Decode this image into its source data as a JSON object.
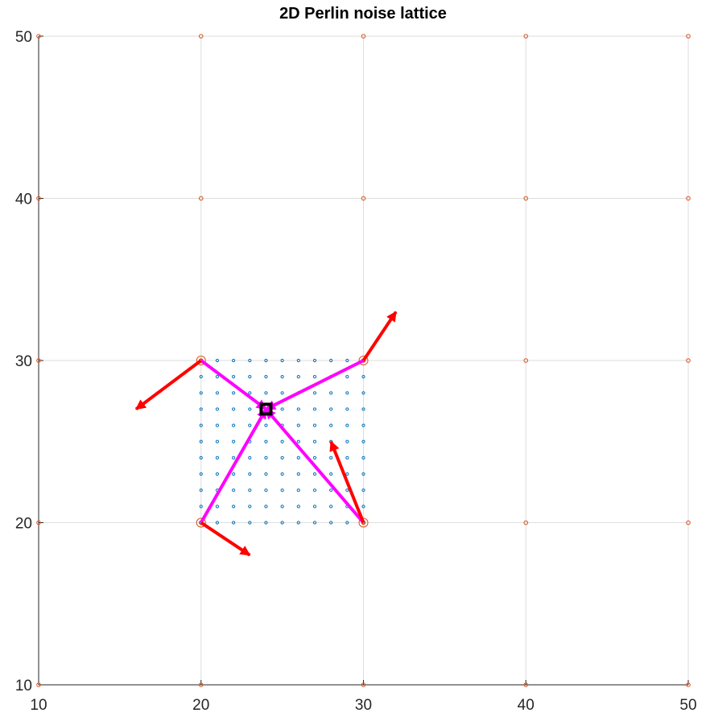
{
  "chart_data": {
    "type": "scatter",
    "title": "2D Perlin noise lattice",
    "xlabel": "",
    "ylabel": "",
    "xlim": [
      10,
      50
    ],
    "ylim": [
      10,
      50
    ],
    "x_ticks": [
      10,
      20,
      30,
      40,
      50
    ],
    "y_ticks": [
      10,
      20,
      30,
      40,
      50
    ],
    "grid": true,
    "lattice_points": {
      "x": [
        10,
        20,
        30,
        40,
        50
      ],
      "y": [
        10,
        20,
        30,
        40,
        50
      ],
      "color": "#D95319"
    },
    "sample_points": {
      "x_range": [
        20,
        30
      ],
      "y_range": [
        20,
        30
      ],
      "step": 1,
      "color": "#0072BD"
    },
    "cell_corners": [
      {
        "x": 20,
        "y": 20
      },
      {
        "x": 30,
        "y": 20
      },
      {
        "x": 20,
        "y": 30
      },
      {
        "x": 30,
        "y": 30
      }
    ],
    "query_point": {
      "x": 24,
      "y": 27,
      "color": "#000000"
    },
    "gradient_vectors": {
      "color": "#FF0000",
      "vectors": [
        {
          "x0": 20,
          "y0": 30,
          "x1": 16,
          "y1": 27
        },
        {
          "x0": 30,
          "y0": 30,
          "x1": 32,
          "y1": 33
        },
        {
          "x0": 20,
          "y0": 20,
          "x1": 23,
          "y1": 18
        },
        {
          "x0": 30,
          "y0": 20,
          "x1": 28,
          "y1": 25
        }
      ]
    },
    "distance_vectors": {
      "color": "#FF00FF",
      "vectors": [
        {
          "x0": 20,
          "y0": 30,
          "x1": 24,
          "y1": 27
        },
        {
          "x0": 30,
          "y0": 30,
          "x1": 24,
          "y1": 27
        },
        {
          "x0": 20,
          "y0": 20,
          "x1": 24,
          "y1": 27
        },
        {
          "x0": 30,
          "y0": 20,
          "x1": 24,
          "y1": 27
        }
      ]
    }
  }
}
